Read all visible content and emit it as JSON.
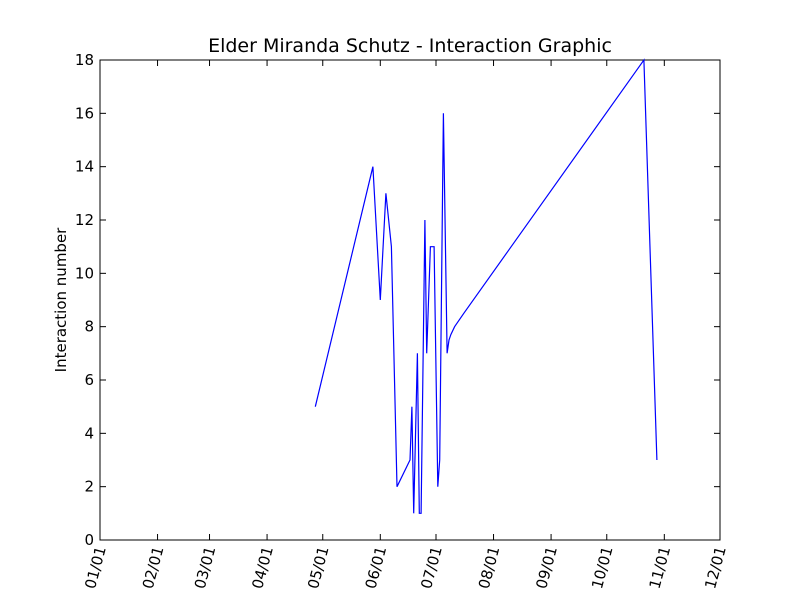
{
  "chart_data": {
    "type": "line",
    "title": "Elder Miranda Schutz - Interaction Graphic",
    "xlabel": "",
    "ylabel": "Interaction number",
    "x_axis_type": "date",
    "xlim": [
      "01/01",
      "12/01"
    ],
    "ylim": [
      0,
      18
    ],
    "x_ticks": [
      "01/01",
      "02/01",
      "03/01",
      "04/01",
      "05/01",
      "06/01",
      "07/01",
      "08/01",
      "09/01",
      "10/01",
      "11/01",
      "12/01"
    ],
    "y_ticks": [
      0,
      2,
      4,
      6,
      8,
      10,
      12,
      14,
      16,
      18
    ],
    "grid": false,
    "legend": "none",
    "series": [
      {
        "color": "#0000ff",
        "x": [
          "04/27",
          "05/28",
          "06/01",
          "06/04",
          "06/07",
          "06/10",
          "06/17",
          "06/18",
          "06/19",
          "06/21",
          "06/22",
          "06/23",
          "06/25",
          "06/26",
          "06/28",
          "06/30",
          "07/02",
          "07/03",
          "07/05",
          "07/07",
          "07/08",
          "07/09",
          "07/11",
          "07/16",
          "10/21",
          "10/28"
        ],
        "y": [
          5,
          14,
          9,
          13,
          11,
          2,
          3,
          5,
          1,
          7,
          1,
          1,
          12,
          7,
          11,
          11,
          2,
          3,
          16,
          7,
          7.5,
          7.7,
          8,
          8.5,
          18,
          3
        ]
      }
    ]
  }
}
